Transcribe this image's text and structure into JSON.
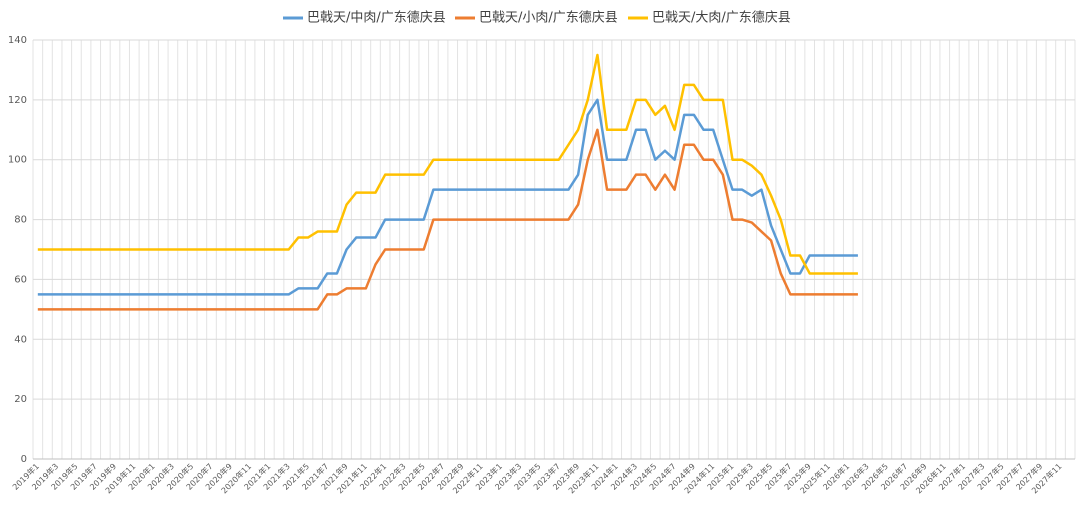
{
  "chart_data": {
    "type": "line",
    "categories": [
      "2019年1",
      null,
      "2019年3",
      null,
      "2019年5",
      null,
      "2019年7",
      null,
      "2019年9",
      null,
      "2019年11",
      null,
      "2020年1",
      null,
      "2020年3",
      null,
      "2020年5",
      null,
      "2020年7",
      null,
      "2020年9",
      null,
      "2020年11",
      null,
      "2021年1",
      null,
      "2021年3",
      null,
      "2021年5",
      null,
      "2021年7",
      null,
      "2021年9",
      null,
      "2021年11",
      null,
      "2022年1",
      null,
      "2022年3",
      null,
      "2022年5",
      null,
      "2022年7",
      null,
      "2022年9",
      null,
      "2022年11",
      null,
      "2023年1",
      null,
      "2023年3",
      null,
      "2023年5",
      null,
      "2023年7",
      null,
      "2023年9",
      null,
      "2023年11",
      null,
      "2024年1",
      null,
      "2024年3",
      null,
      "2024年5",
      null,
      "2024年7",
      null,
      "2024年9",
      null,
      "2024年11",
      null,
      "2025年1",
      null,
      "2025年3",
      null,
      "2025年5",
      null,
      "2025年7",
      null,
      "2025年9",
      null,
      "2025年11",
      null,
      "2026年1",
      null,
      "2026年3",
      null,
      "2026年5",
      null,
      "2026年7",
      null,
      "2026年9",
      null,
      "2026年11",
      null,
      "2027年1",
      null,
      "2027年3",
      null,
      "2027年5",
      null,
      "2027年7",
      null,
      "2027年9",
      null,
      "2027年11",
      null
    ],
    "series": [
      {
        "name": "巴戟天/中肉/广东德庆县",
        "color": "#5b9bd5",
        "values": [
          55,
          55,
          55,
          55,
          55,
          55,
          55,
          55,
          55,
          55,
          55,
          55,
          55,
          55,
          55,
          55,
          55,
          55,
          55,
          55,
          55,
          55,
          55,
          55,
          55,
          55,
          55,
          57,
          57,
          57,
          62,
          62,
          70,
          74,
          74,
          74,
          80,
          80,
          80,
          80,
          80,
          90,
          90,
          90,
          90,
          90,
          90,
          90,
          90,
          90,
          90,
          90,
          90,
          90,
          90,
          90,
          95,
          115,
          120,
          100,
          100,
          100,
          110,
          110,
          100,
          103,
          100,
          115,
          115,
          110,
          110,
          100,
          90,
          90,
          88,
          90,
          78,
          70,
          62,
          62,
          68,
          68,
          68,
          68,
          68,
          68,
          null,
          null,
          null,
          null,
          null,
          null,
          null,
          null,
          null,
          null,
          null,
          null,
          null,
          null,
          null,
          null,
          null,
          null,
          null,
          null,
          null,
          null
        ]
      },
      {
        "name": "巴戟天/小肉/广东德庆县",
        "color": "#ed7d31",
        "values": [
          50,
          50,
          50,
          50,
          50,
          50,
          50,
          50,
          50,
          50,
          50,
          50,
          50,
          50,
          50,
          50,
          50,
          50,
          50,
          50,
          50,
          50,
          50,
          50,
          50,
          50,
          50,
          50,
          50,
          50,
          55,
          55,
          57,
          57,
          57,
          65,
          70,
          70,
          70,
          70,
          70,
          80,
          80,
          80,
          80,
          80,
          80,
          80,
          80,
          80,
          80,
          80,
          80,
          80,
          80,
          80,
          85,
          100,
          110,
          90,
          90,
          90,
          95,
          95,
          90,
          95,
          90,
          105,
          105,
          100,
          100,
          95,
          80,
          80,
          79,
          76,
          73,
          62,
          55,
          55,
          55,
          55,
          55,
          55,
          55,
          55,
          null,
          null,
          null,
          null,
          null,
          null,
          null,
          null,
          null,
          null,
          null,
          null,
          null,
          null,
          null,
          null,
          null,
          null,
          null,
          null,
          null,
          null
        ]
      },
      {
        "name": "巴戟天/大肉/广东德庆县",
        "color": "#ffc000",
        "values": [
          70,
          70,
          70,
          70,
          70,
          70,
          70,
          70,
          70,
          70,
          70,
          70,
          70,
          70,
          70,
          70,
          70,
          70,
          70,
          70,
          70,
          70,
          70,
          70,
          70,
          70,
          70,
          74,
          74,
          76,
          76,
          76,
          85,
          89,
          89,
          89,
          95,
          95,
          95,
          95,
          95,
          100,
          100,
          100,
          100,
          100,
          100,
          100,
          100,
          100,
          100,
          100,
          100,
          100,
          100,
          105,
          110,
          120,
          135,
          110,
          110,
          110,
          120,
          120,
          115,
          118,
          110,
          125,
          125,
          120,
          120,
          120,
          100,
          100,
          98,
          95,
          88,
          80,
          68,
          68,
          62,
          62,
          62,
          62,
          62,
          62,
          null,
          null,
          null,
          null,
          null,
          null,
          null,
          null,
          null,
          null,
          null,
          null,
          null,
          null,
          null,
          null,
          null,
          null,
          null,
          null,
          null,
          null
        ]
      }
    ],
    "ylim": [
      0,
      140
    ],
    "yticks": [
      0,
      20,
      40,
      60,
      80,
      100,
      120,
      140
    ],
    "grid": true,
    "legend": "top"
  }
}
